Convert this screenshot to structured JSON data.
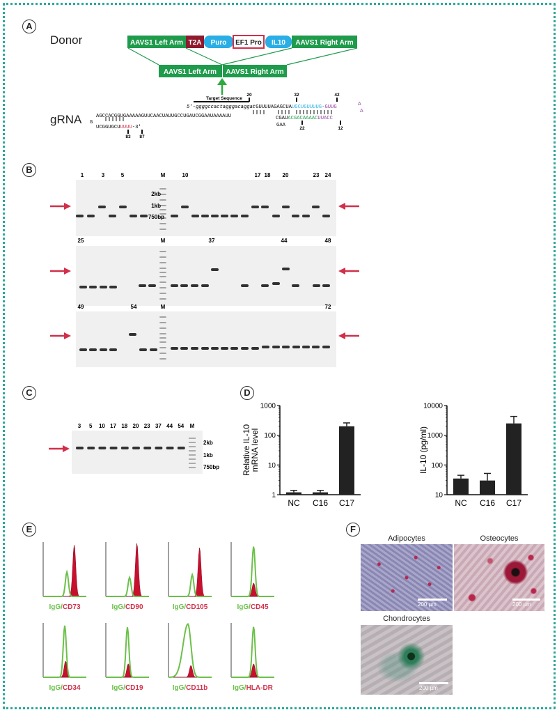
{
  "panels": {
    "A": {
      "label": "A",
      "donor_label": "Donor",
      "gRNA_label": "gRNA",
      "donor_segments": [
        "AAVS1 Left Arm",
        "T2A",
        "Puro",
        "EF1 Pro",
        "IL10",
        "AAVS1 Right Arm"
      ],
      "target_arms": [
        "AAVS1 Left Arm",
        "AAVS1 Right Arm"
      ],
      "target_sequence_label": "Target Sequence",
      "seq_top": "5'-ggggccactagggacaggatGUUUUAGAGCUAUGCUGUUUUG-GUUGA",
      "seq_top_parts": {
        "prefix": "5'-ggggccactagggacaggat",
        "black": "GUUUUAGAGCUA",
        "blue": "UGCUGUUUUG",
        "purple": "-GUUG"
      },
      "seq_mid_parts": {
        "black": "CGAU",
        "green": "ACGACAAAAC",
        "purple": "UUACC"
      },
      "seq_left_top": "AGCCACGGUGAAAAAGUUCAACUAUUGCCUGAUCGGAAUAAAAUU",
      "seq_left_bottom_black": "UCGGUGCU",
      "seq_left_bottom_red": "UUUU",
      "seq_left_bottom_end": "-3'",
      "g_char": "G",
      "gaa": "GAA",
      "a1": "A",
      "a2": "A",
      "numbers": {
        "n20": "20",
        "n32": "32",
        "n42": "42",
        "n22": "22",
        "n12": "12",
        "n83": "83",
        "n87": "87"
      }
    },
    "B": {
      "label": "B",
      "row1_lane_numbers": [
        "1",
        "3",
        "5",
        "M",
        "10",
        "17",
        "18",
        "20",
        "23",
        "24"
      ],
      "row2_lane_numbers": [
        "25",
        "M",
        "37",
        "44",
        "48"
      ],
      "row3_lane_numbers": [
        "49",
        "54",
        "M",
        "72"
      ],
      "ladder": [
        "2kb",
        "1kb",
        "750bp"
      ]
    },
    "C": {
      "label": "C",
      "lane_numbers": [
        "3",
        "5",
        "10",
        "17",
        "18",
        "20",
        "23",
        "37",
        "44",
        "54",
        "M"
      ],
      "ladder": [
        "2kb",
        "1kb",
        "750bp"
      ]
    },
    "D": {
      "label": "D",
      "left_ylabel_line1": "Relative IL-10",
      "left_ylabel_line2": "mRNA level",
      "right_ylabel": "IL-10 (pg/ml)",
      "left_ticks": [
        "1000",
        "100",
        "10",
        "1"
      ],
      "right_ticks": [
        "10000",
        "1000",
        "100",
        "10"
      ],
      "categories": [
        "NC",
        "C16",
        "C17"
      ]
    },
    "E": {
      "label": "E",
      "histograms": [
        {
          "green": "IgG",
          "sep": "/",
          "red": "CD73"
        },
        {
          "green": "IgG",
          "sep": "/",
          "red": "CD90"
        },
        {
          "green": "IgG",
          "sep": "/",
          "red": "CD105"
        },
        {
          "green": "IgG",
          "sep": "/",
          "red": "CD45"
        },
        {
          "green": "IgG",
          "sep": "/",
          "red": "CD34"
        },
        {
          "green": "IgG",
          "sep": "/",
          "red": "CD19"
        },
        {
          "green": "IgG",
          "sep": "/",
          "red": "CD11b"
        },
        {
          "green": "IgG",
          "sep": "/",
          "red": "HLA-DR"
        }
      ]
    },
    "F": {
      "label": "F",
      "images": [
        {
          "title": "Adipocytes",
          "scale": "200 µm"
        },
        {
          "title": "Osteocytes",
          "scale": "200 µm"
        },
        {
          "title": "Chondrocytes",
          "scale": "200 µm"
        }
      ]
    }
  },
  "colors": {
    "green_box": "#1e9b4b",
    "t2a": "#8e1a2e",
    "blue_box": "#29aee6",
    "red_arrow": "#d0304a",
    "frame": "#2aa898"
  },
  "chart_data": [
    {
      "type": "bar",
      "categories": [
        "NC",
        "C16",
        "C17"
      ],
      "values": [
        1.2,
        1.2,
        200
      ],
      "errors": [
        0.2,
        0.2,
        60
      ],
      "yscale": "log",
      "ylim": [
        1,
        1000
      ],
      "ylabel": "Relative IL-10 mRNA level",
      "title": "",
      "xlabel": ""
    },
    {
      "type": "bar",
      "categories": [
        "NC",
        "C16",
        "C17"
      ],
      "values": [
        35,
        30,
        2500
      ],
      "errors": [
        10,
        22,
        1800
      ],
      "yscale": "log",
      "ylim": [
        10,
        10000
      ],
      "ylabel": "IL-10 (pg/ml)",
      "title": "",
      "xlabel": ""
    }
  ]
}
